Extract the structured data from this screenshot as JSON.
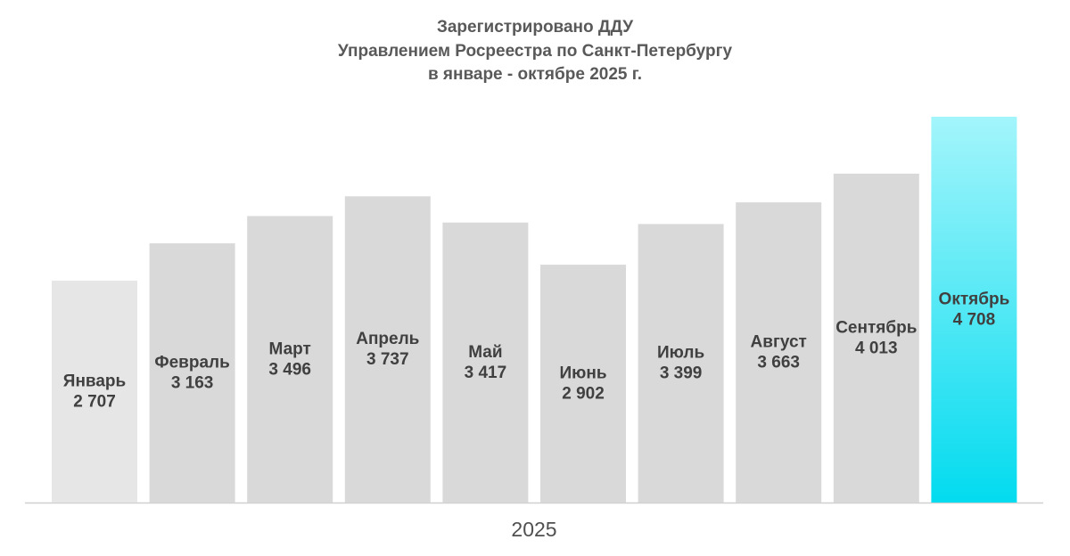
{
  "chart_data": {
    "type": "bar",
    "title": [
      "Зарегистрировано ДДУ",
      "Управлением Росреестра по Санкт-Петербургу",
      "в январе - октябре 2025 г."
    ],
    "x_label": "2025",
    "categories": [
      "Январь",
      "Февраль",
      "Март",
      "Апрель",
      "Май",
      "Июнь",
      "Июль",
      "Август",
      "Сентябрь",
      "Октябрь"
    ],
    "values": [
      2707,
      3163,
      3496,
      3737,
      3417,
      2902,
      3399,
      3663,
      4013,
      4708
    ],
    "value_labels": [
      "2 707",
      "3 163",
      "3 496",
      "3 737",
      "3 417",
      "2 902",
      "3 399",
      "3 663",
      "4 013",
      "4 708"
    ],
    "colors": [
      "#e6e6e6",
      "#d9d9d9",
      "#d9d9d9",
      "#d9d9d9",
      "#d9d9d9",
      "#d9d9d9",
      "#d9d9d9",
      "#d9d9d9",
      "#d9d9d9",
      "gradient"
    ],
    "gradient": [
      "#a3f5fb",
      "#03dbef"
    ]
  }
}
